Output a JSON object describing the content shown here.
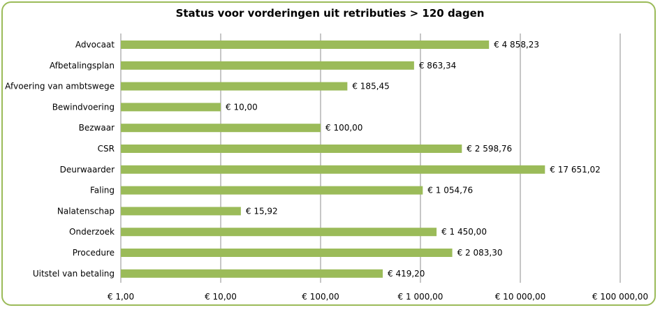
{
  "chart_data": {
    "type": "bar",
    "orientation": "horizontal",
    "title": "Status voor vorderingen uit retributies > 120 dagen",
    "x_scale": "log",
    "xlim": [
      1,
      100000
    ],
    "grid": true,
    "legend": "none",
    "bar_color": "#9bbb59",
    "frame_color": "#9bbb59",
    "x_ticks": [
      1,
      10,
      100,
      1000,
      10000,
      100000
    ],
    "x_tick_labels": [
      "€ 1,00",
      "€ 10,00",
      "€ 100,00",
      "€ 1 000,00",
      "€ 10 000,00",
      "€ 100 000,00"
    ],
    "categories": [
      "Advocaat",
      "Afbetalingsplan",
      "Afvoering van ambtswege",
      "Bewindvoering",
      "Bezwaar",
      "CSR",
      "Deurwaarder",
      "Faling",
      "Nalatenschap",
      "Onderzoek",
      "Procedure",
      "Uitstel van betaling"
    ],
    "values": [
      4858.23,
      863.34,
      185.45,
      10.0,
      100.0,
      2598.76,
      17651.02,
      1054.76,
      15.92,
      1450.0,
      2083.3,
      419.2
    ],
    "data_labels": [
      "€ 4 858,23",
      "€ 863,34",
      "€ 185,45",
      "€ 10,00",
      "€ 100,00",
      "€ 2 598,76",
      "€ 17 651,02",
      "€ 1 054,76",
      "€ 15,92",
      "€ 1 450,00",
      "€ 2 083,30",
      "€ 419,20"
    ]
  }
}
